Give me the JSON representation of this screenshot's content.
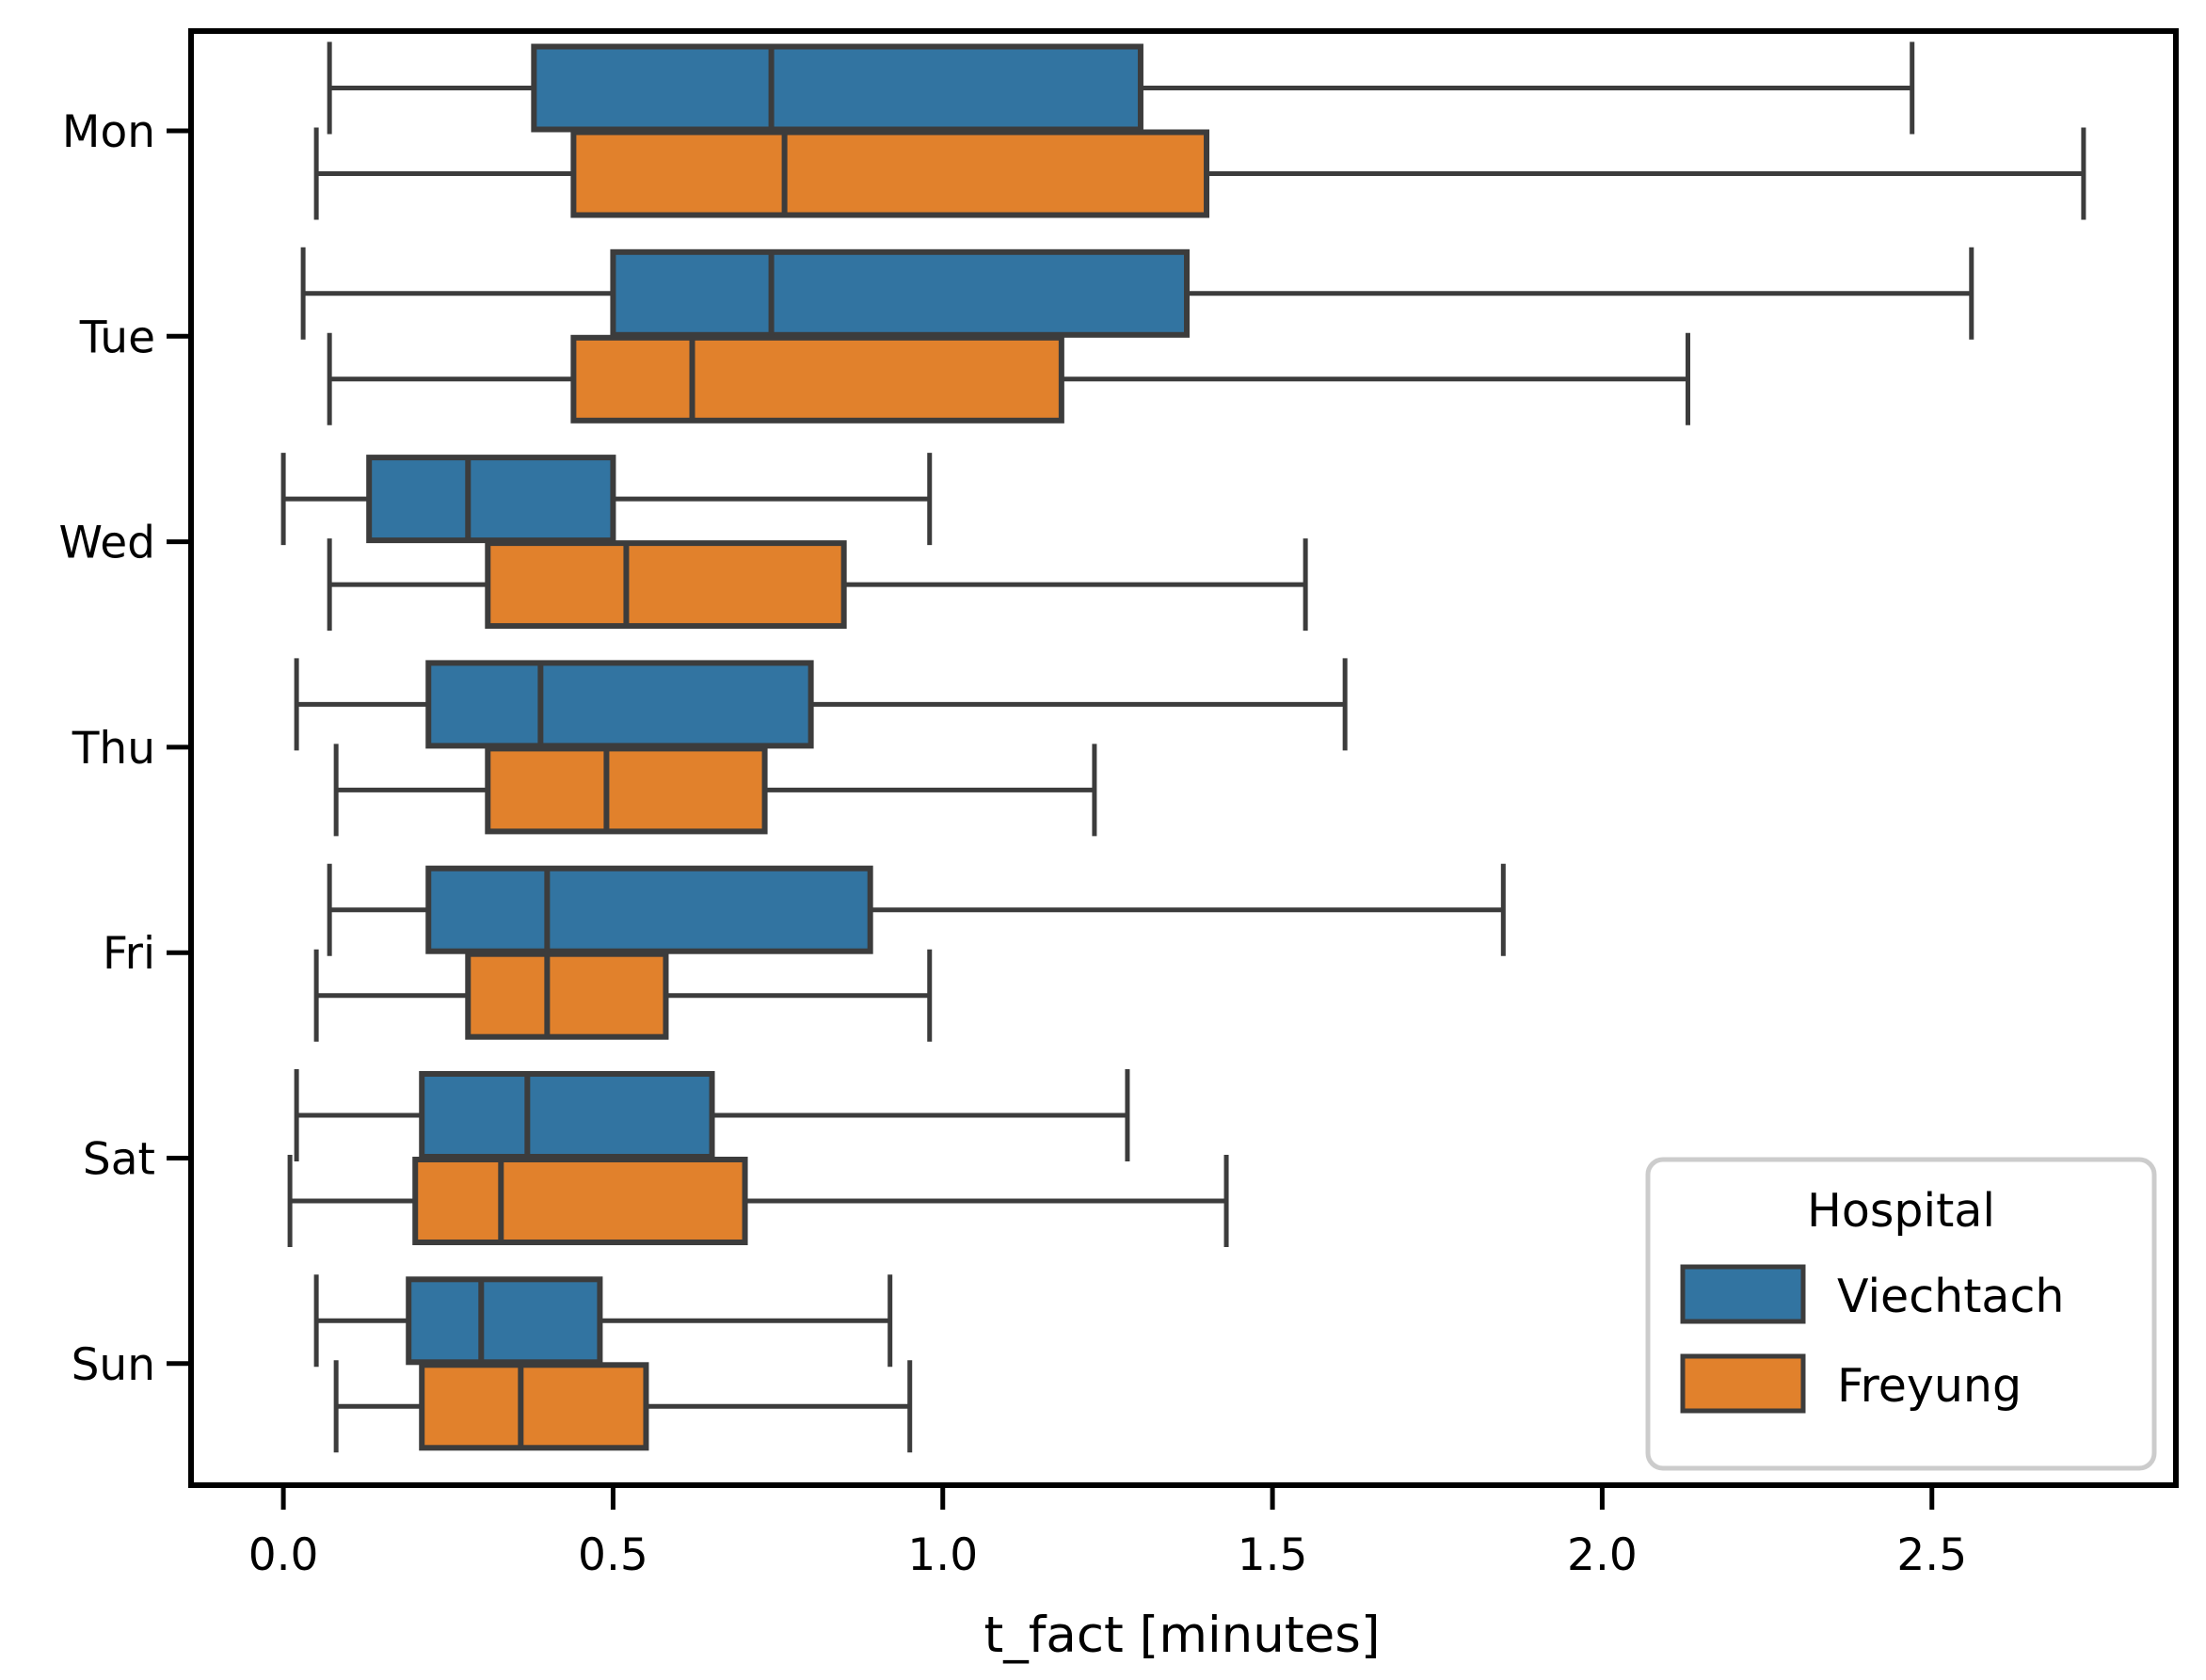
{
  "chart_data": {
    "type": "boxplot",
    "orientation": "horizontal",
    "title": "",
    "xlabel": "t_fact [minutes]",
    "ylabel": "",
    "categories": [
      "Mon",
      "Tue",
      "Wed",
      "Thu",
      "Fri",
      "Sat",
      "Sun"
    ],
    "x_tick_labels": [
      "0.0",
      "0.5",
      "1.0",
      "1.5",
      "2.0",
      "2.5"
    ],
    "x_tick_values": [
      0.0,
      0.5,
      1.0,
      1.5,
      2.0,
      2.5
    ],
    "xlim": [
      -0.14,
      2.87
    ],
    "grid": false,
    "box_edge_color": "#3C3C3C",
    "spine_color": "#000000",
    "legend": {
      "title": "Hospital",
      "position": "lower right"
    },
    "series": [
      {
        "name": "Viechtach",
        "color": "#3274A1",
        "boxes": [
          {
            "category": "Mon",
            "whisker_low": 0.07,
            "q1": 0.38,
            "median": 0.74,
            "q3": 1.3,
            "whisker_high": 2.47
          },
          {
            "category": "Tue",
            "whisker_low": 0.03,
            "q1": 0.5,
            "median": 0.74,
            "q3": 1.37,
            "whisker_high": 2.56
          },
          {
            "category": "Wed",
            "whisker_low": 0.0,
            "q1": 0.13,
            "median": 0.28,
            "q3": 0.5,
            "whisker_high": 0.98
          },
          {
            "category": "Thu",
            "whisker_low": 0.02,
            "q1": 0.22,
            "median": 0.39,
            "q3": 0.8,
            "whisker_high": 1.61
          },
          {
            "category": "Fri",
            "whisker_low": 0.07,
            "q1": 0.22,
            "median": 0.4,
            "q3": 0.89,
            "whisker_high": 1.85
          },
          {
            "category": "Sat",
            "whisker_low": 0.02,
            "q1": 0.21,
            "median": 0.37,
            "q3": 0.65,
            "whisker_high": 1.28
          },
          {
            "category": "Sun",
            "whisker_low": 0.05,
            "q1": 0.19,
            "median": 0.3,
            "q3": 0.48,
            "whisker_high": 0.92
          }
        ]
      },
      {
        "name": "Freyung",
        "color": "#E1812C",
        "boxes": [
          {
            "category": "Mon",
            "whisker_low": 0.05,
            "q1": 0.44,
            "median": 0.76,
            "q3": 1.4,
            "whisker_high": 2.73
          },
          {
            "category": "Tue",
            "whisker_low": 0.07,
            "q1": 0.44,
            "median": 0.62,
            "q3": 1.18,
            "whisker_high": 2.13
          },
          {
            "category": "Wed",
            "whisker_low": 0.07,
            "q1": 0.31,
            "median": 0.52,
            "q3": 0.85,
            "whisker_high": 1.55
          },
          {
            "category": "Thu",
            "whisker_low": 0.08,
            "q1": 0.31,
            "median": 0.49,
            "q3": 0.73,
            "whisker_high": 1.23
          },
          {
            "category": "Fri",
            "whisker_low": 0.05,
            "q1": 0.28,
            "median": 0.4,
            "q3": 0.58,
            "whisker_high": 0.98
          },
          {
            "category": "Sat",
            "whisker_low": 0.01,
            "q1": 0.2,
            "median": 0.33,
            "q3": 0.7,
            "whisker_high": 1.43
          },
          {
            "category": "Sun",
            "whisker_low": 0.08,
            "q1": 0.21,
            "median": 0.36,
            "q3": 0.55,
            "whisker_high": 0.95
          }
        ]
      }
    ]
  }
}
